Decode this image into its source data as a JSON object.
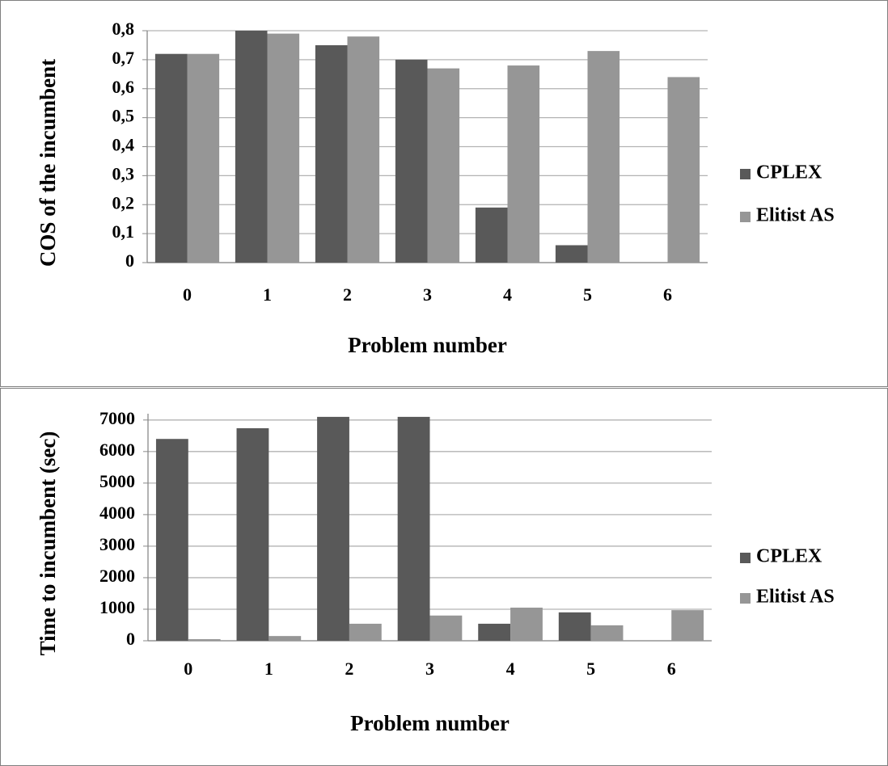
{
  "chart_data": [
    {
      "type": "bar",
      "xlabel": "Problem number",
      "ylabel": "COS of the incumbent",
      "categories": [
        "0",
        "1",
        "2",
        "3",
        "4",
        "5",
        "6"
      ],
      "series": [
        {
          "name": "CPLEX",
          "color": "#595959",
          "values": [
            0.72,
            0.8,
            0.75,
            0.7,
            0.19,
            0.06,
            null
          ]
        },
        {
          "name": "Elitist AS",
          "color": "#969696",
          "values": [
            0.72,
            0.79,
            0.78,
            0.67,
            0.68,
            0.73,
            0.64
          ]
        }
      ],
      "ylim": [
        0,
        0.8
      ],
      "yticks": [
        0,
        {
          "value": 0.1,
          "label": "0,1"
        },
        {
          "value": 0.2,
          "label": "0,2"
        },
        {
          "value": 0.3,
          "label": "0,3"
        },
        {
          "value": 0.4,
          "label": "0,4"
        },
        {
          "value": 0.5,
          "label": "0,5"
        },
        {
          "value": 0.6,
          "label": "0,6"
        },
        {
          "value": 0.7,
          "label": "0,7"
        },
        {
          "value": 0.8,
          "label": "0,8"
        }
      ],
      "grid": true,
      "legend": "right"
    },
    {
      "type": "bar",
      "xlabel": "Problem number",
      "ylabel": "Time to incumbent  (sec)",
      "categories": [
        "0",
        "1",
        "2",
        "3",
        "4",
        "5",
        "6"
      ],
      "series": [
        {
          "name": "CPLEX",
          "color": "#595959",
          "values": [
            6400,
            6740,
            7100,
            7100,
            540,
            900,
            null
          ]
        },
        {
          "name": "Elitist AS",
          "color": "#969696",
          "values": [
            50,
            150,
            540,
            800,
            1050,
            490,
            970
          ]
        }
      ],
      "ylim": [
        0,
        7200
      ],
      "yticks": [
        0,
        1000,
        2000,
        3000,
        4000,
        5000,
        6000,
        7000
      ],
      "grid": true,
      "legend": "right"
    }
  ]
}
